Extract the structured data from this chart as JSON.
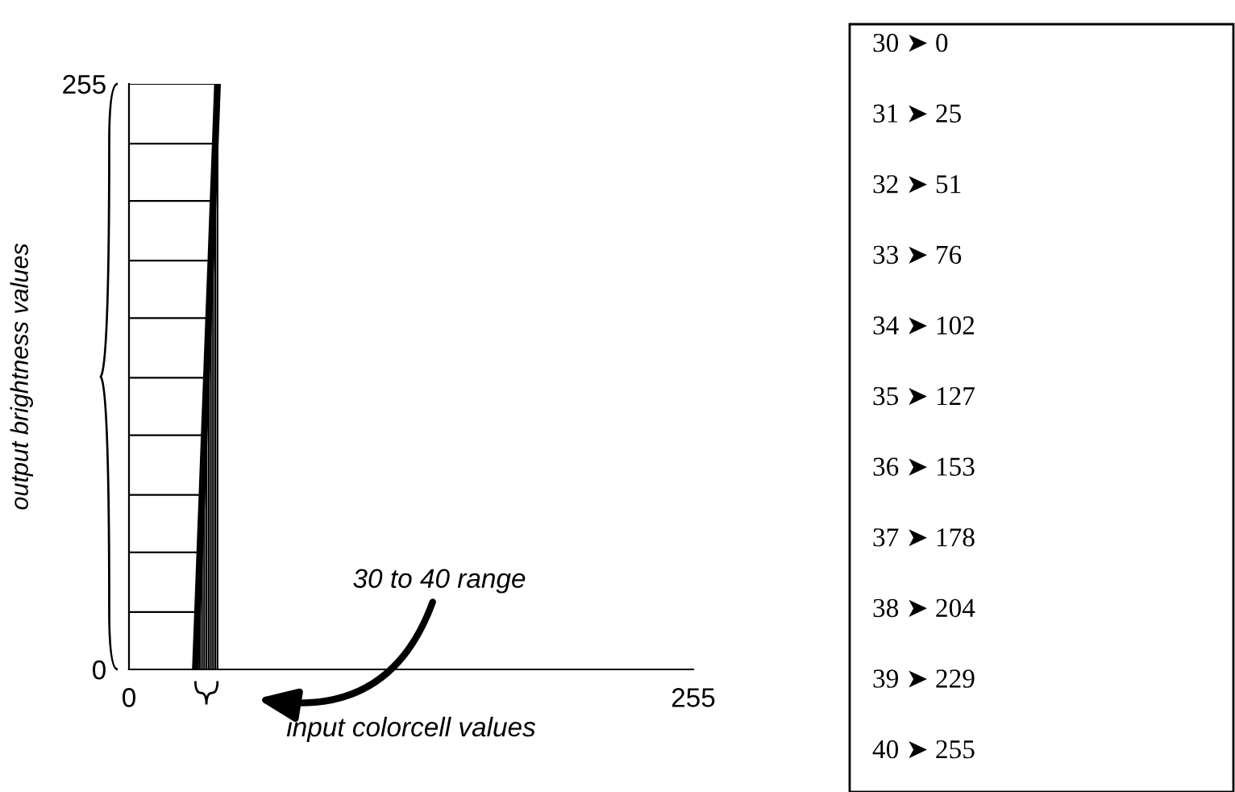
{
  "chart_data": {
    "type": "line",
    "xlabel": "input colorcell values",
    "ylabel": "output brightness values",
    "x": [
      30,
      31,
      32,
      33,
      34,
      35,
      36,
      37,
      38,
      39,
      40
    ],
    "series": [
      {
        "color": "#000000",
        "values": [
          0,
          25,
          51,
          76,
          102,
          127,
          153,
          178,
          204,
          229,
          255
        ],
        "errors": [
          [
            0,
            0
          ],
          [
            0,
            25
          ],
          [
            0,
            51
          ],
          [
            0,
            76
          ],
          [
            0,
            102
          ],
          [
            0,
            127
          ],
          [
            0,
            153
          ],
          [
            0,
            178
          ],
          [
            0,
            204
          ],
          [
            0,
            229
          ],
          [
            0,
            255
          ]
        ],
        "xerrors": [
          [
            0,
            30
          ],
          [
            0,
            31
          ],
          [
            0,
            32
          ],
          [
            0,
            33
          ],
          [
            0,
            34
          ],
          [
            0,
            35
          ],
          [
            0,
            36
          ],
          [
            0,
            37
          ],
          [
            0,
            38
          ],
          [
            0,
            39
          ],
          [
            0,
            40
          ]
        ]
      }
    ],
    "xlim": [
      0,
      255
    ],
    "ylim": [
      0,
      255
    ],
    "xticks": [
      0,
      255
    ],
    "yticks": [
      0,
      255
    ],
    "marker": "none",
    "line_style": "solid",
    "annotations": [
      "30 to 40 range",
      "30 ➤ 0",
      "31 ➤ 25",
      "32 ➤ 51",
      "33 ➤ 76",
      "34 ➤ 102",
      "35 ➤ 127",
      "36 ➤ 153",
      "37 ➤ 178",
      "38 ➤ 204",
      "39 ➤ 229",
      "40 ➤ 255"
    ]
  }
}
